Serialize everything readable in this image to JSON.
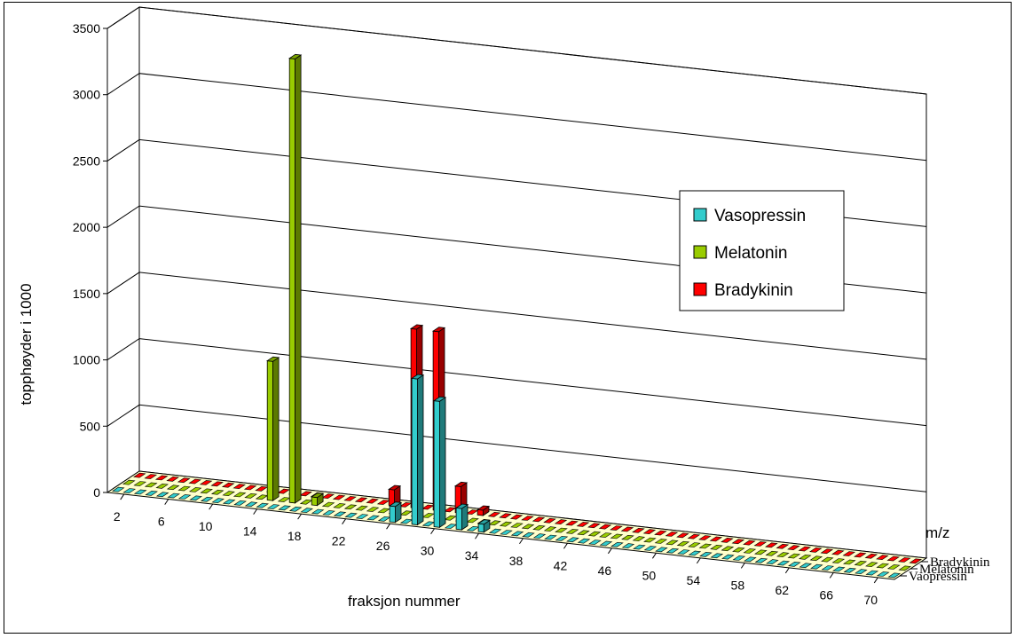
{
  "chart_data": {
    "type": "bar",
    "view": "3d-clustered-columns",
    "ylabel": "topphøyder i 1000",
    "xlabel": "fraksjon nummer",
    "zlabel": "m/z",
    "ylim": [
      0,
      3500
    ],
    "yticks": [
      "0",
      "500",
      "1000",
      "1500",
      "2000",
      "2500",
      "3000",
      "3500"
    ],
    "x_first": 1,
    "x_last": 71,
    "xtick_labels": [
      "2",
      "6",
      "10",
      "14",
      "18",
      "22",
      "26",
      "30",
      "34",
      "38",
      "42",
      "46",
      "50",
      "54",
      "58",
      "62",
      "66",
      "70"
    ],
    "grid": true,
    "legend_position": "right",
    "series": [
      {
        "name": "Vasopressin",
        "depth_label": "Vaopressin",
        "color": "#33cccc",
        "values": {
          "26": 120,
          "28": 1100,
          "30": 950,
          "32": 160,
          "34": 60
        }
      },
      {
        "name": "Melatonin",
        "depth_label": "Melatonin",
        "color": "#99cc00",
        "values": {
          "14": 1050,
          "16": 3350,
          "18": 60
        }
      },
      {
        "name": "Bradykinin",
        "depth_label": "Bradykinin",
        "color": "#ff0000",
        "values": {
          "24": 120,
          "26": 1350,
          "28": 1350,
          "30": 200,
          "32": 40
        }
      }
    ]
  }
}
